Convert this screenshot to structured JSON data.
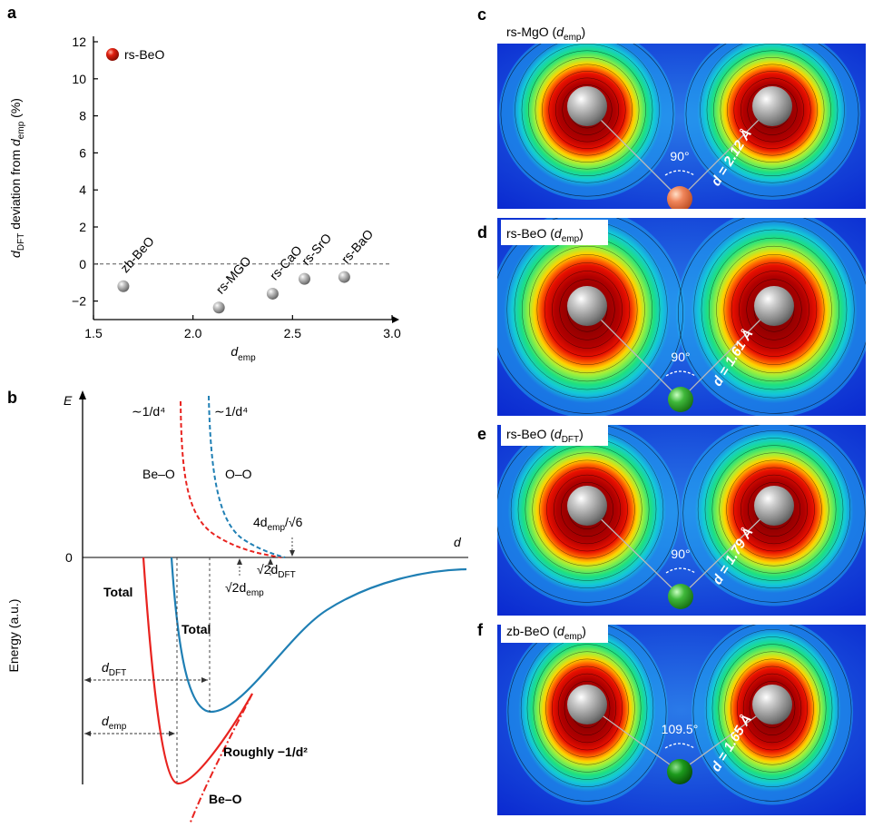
{
  "panel_letters": {
    "a": "a",
    "b": "b",
    "c": "c",
    "d": "d",
    "e": "e",
    "f": "f"
  },
  "chart_data": [
    {
      "panel": "a",
      "type": "scatter",
      "ylabel_parts": [
        "d",
        "DFT",
        " deviation from ",
        "d",
        "emp",
        " (%)"
      ],
      "xlabel_parts": [
        "d",
        "emp"
      ],
      "xlim": [
        1.5,
        3.0
      ],
      "ylim": [
        -3,
        12
      ],
      "xticks": [
        1.5,
        2.0,
        2.5,
        3.0
      ],
      "xtick_labels": [
        "1.5",
        "2.0",
        "2.5",
        "3.0"
      ],
      "yticks": [
        -2,
        0,
        2,
        4,
        6,
        8,
        10,
        12
      ],
      "ytick_labels": [
        "−2",
        "0",
        "2",
        "4",
        "6",
        "8",
        "10",
        "12"
      ],
      "reference_line": {
        "y": 0,
        "style": "dashed"
      },
      "legend": {
        "label": "rs-BeO",
        "color": "#cc0000",
        "position": "top-left",
        "value": 12.0
      },
      "points": [
        {
          "label": "zb-BeO",
          "x": 1.65,
          "y": -1.2,
          "color": "#808080"
        },
        {
          "label": "rs-MGO",
          "x": 2.13,
          "y": -2.35,
          "color": "#808080"
        },
        {
          "label": "rs-CaO",
          "x": 2.4,
          "y": -1.6,
          "color": "#808080"
        },
        {
          "label": "rs-SrO",
          "x": 2.56,
          "y": -0.8,
          "color": "#808080"
        },
        {
          "label": "rs-BaO",
          "x": 2.76,
          "y": -0.7,
          "color": "#808080"
        }
      ]
    },
    {
      "panel": "b",
      "type": "line",
      "ylabel": "Energy (a.u.)",
      "axis_y_label": "E",
      "axis_x_label": "d",
      "zero_label": "0",
      "annotations": {
        "be_o_rep": "∼1/d⁴",
        "o_o_rep": "∼1/d⁴",
        "be_o_label": "Be–O",
        "o_o_label": "O–O",
        "total_left": "Total",
        "total_mid": "Total",
        "roughly": "Roughly −1/d²",
        "be_o_bottom": "Be–O",
        "four_d": "4d",
        "four_d_sub": "emp",
        "four_d_tail": "/√6",
        "sqrt2_demp": "√2d",
        "sqrt2_demp_sub": "emp",
        "sqrt2_ddft": "√2d",
        "sqrt2_ddft_sub": "DFT",
        "d_dft": "d",
        "d_dft_sub": "DFT",
        "d_emp": "d",
        "d_emp_sub": "emp"
      },
      "series": [
        {
          "name": "Be–O",
          "color": "#e8231f",
          "style": "dashed",
          "role": "repulsion"
        },
        {
          "name": "O–O",
          "color": "#1f7fb4",
          "style": "dashed",
          "role": "repulsion"
        },
        {
          "name": "Total",
          "color": "#e8231f",
          "style": "solid",
          "role": "total"
        },
        {
          "name": "Total",
          "color": "#1f7fb4",
          "style": "solid",
          "role": "total"
        },
        {
          "name": "Be–O",
          "color": "#e8231f",
          "style": "dashdot",
          "role": "attraction"
        }
      ]
    }
  ],
  "maps": [
    {
      "panel": "c",
      "label": "rs-MgO (",
      "label_sym": "d",
      "label_sub": "emp",
      "label_end": ")",
      "angle": "90°",
      "distance": "d = 2.12 Å",
      "center_atom_color": "#f28a5a"
    },
    {
      "panel": "d",
      "label": "rs-BeO (",
      "label_sym": "d",
      "label_sub": "emp",
      "label_end": ")",
      "angle": "90°",
      "distance": "d = 1.61 Å",
      "center_atom_color": "#3cb93c"
    },
    {
      "panel": "e",
      "label": "rs-BeO (",
      "label_sym": "d",
      "label_sub": "DFT",
      "label_end": ")",
      "angle": "90°",
      "distance": "d = 1.79 Å",
      "center_atom_color": "#3cb93c"
    },
    {
      "panel": "f",
      "label": "zb-BeO (",
      "label_sym": "d",
      "label_sub": "emp",
      "label_end": ")",
      "angle": "109.5°",
      "distance": "d = 1.65 Å",
      "center_atom_color": "#1a9a1a"
    }
  ]
}
